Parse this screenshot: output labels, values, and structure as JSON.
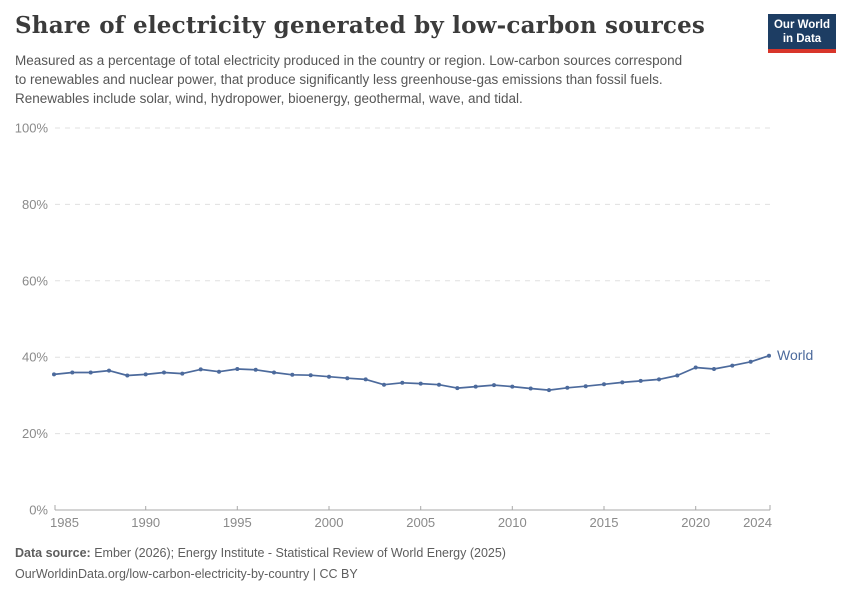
{
  "header": {
    "title": "Share of electricity generated by low-carbon sources",
    "subtitle_lines": [
      "Measured as a percentage of total electricity produced in the country or region. Low-carbon sources correspond",
      "to renewables and nuclear power, that produce significantly less greenhouse-gas emissions than fossil fuels.",
      "Renewables include solar, wind, hydropower, bioenergy, geothermal, wave, and tidal."
    ]
  },
  "logo": {
    "line1": "Our World",
    "line2": "in Data",
    "bg_color": "#1d3d63",
    "accent_color": "#d8352a"
  },
  "chart_data": {
    "type": "line",
    "title": "Share of electricity generated by low-carbon sources",
    "x": [
      1985,
      1986,
      1987,
      1988,
      1989,
      1990,
      1991,
      1992,
      1993,
      1994,
      1995,
      1996,
      1997,
      1998,
      1999,
      2000,
      2001,
      2002,
      2003,
      2004,
      2005,
      2006,
      2007,
      2008,
      2009,
      2010,
      2011,
      2012,
      2013,
      2014,
      2015,
      2016,
      2017,
      2018,
      2019,
      2020,
      2021,
      2022,
      2023,
      2024
    ],
    "series": [
      {
        "name": "World",
        "color": "#4c6a9c",
        "values": [
          35.5,
          36.0,
          36.0,
          36.5,
          35.2,
          35.5,
          36.0,
          35.7,
          36.8,
          36.2,
          36.9,
          36.7,
          36.0,
          35.4,
          35.3,
          34.9,
          34.5,
          34.2,
          32.8,
          33.3,
          33.1,
          32.8,
          31.9,
          32.3,
          32.7,
          32.3,
          31.8,
          31.4,
          32.0,
          32.4,
          32.9,
          33.4,
          33.8,
          34.2,
          35.2,
          37.3,
          36.9,
          37.8,
          38.8,
          40.4
        ]
      }
    ],
    "ylim": [
      0,
      100
    ],
    "yticks": [
      0,
      20,
      40,
      60,
      80,
      100
    ],
    "ytick_suffix": "%",
    "xticks": [
      1985,
      1990,
      1995,
      2000,
      2005,
      2010,
      2015,
      2020,
      2024
    ],
    "grid": "horizontal-dashed",
    "legend_position": "end-of-line",
    "grid_color": "#e0e0e0",
    "axis_color": "#a8a8a8",
    "tick_label_color": "#8a8a8a"
  },
  "footer": {
    "source_label": "Data source:",
    "source_text": " Ember (2026); Energy Institute - Statistical Review of World Energy (2025)",
    "link_line": "OurWorldinData.org/low-carbon-electricity-by-country | CC BY"
  }
}
